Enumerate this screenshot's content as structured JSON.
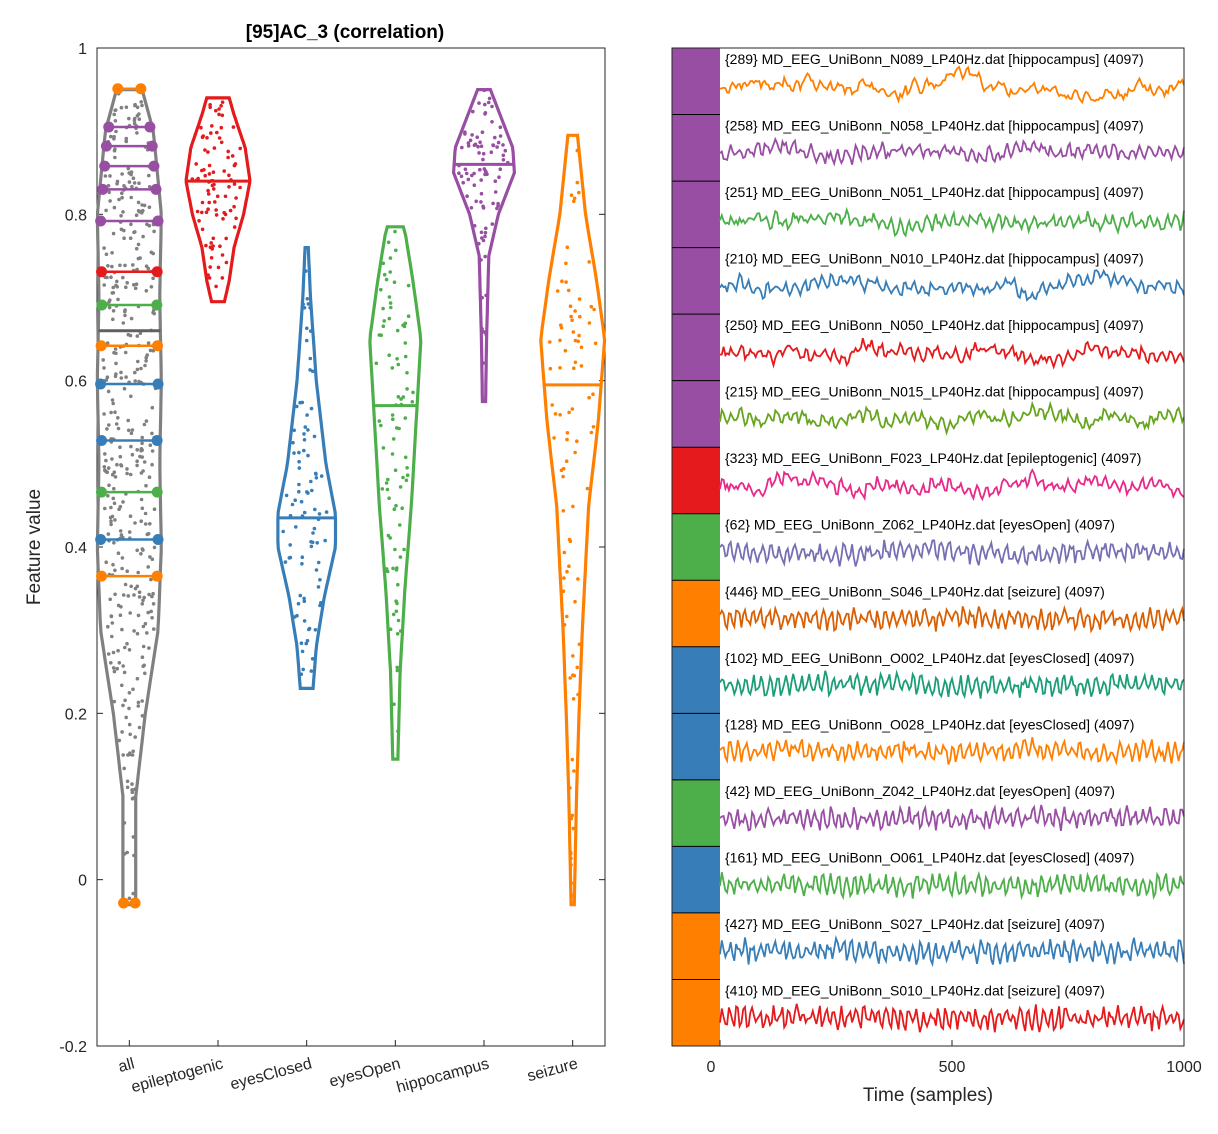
{
  "chart_data": [
    {
      "type": "violin",
      "title": "[95]AC_3 (correlation)",
      "xlabel": "",
      "ylabel": "Feature value",
      "ylim": [
        -0.2,
        1
      ],
      "yticks": [
        -0.2,
        0,
        0.2,
        0.4,
        0.6,
        0.8,
        1
      ],
      "ytick_labels": [
        "-0.2",
        "0",
        "0.2",
        "0.4",
        "0.6",
        "0.8",
        "1"
      ],
      "categories": [
        "all",
        "epileptogenic",
        "eyesClosed",
        "eyesOpen",
        "hippocampus",
        "seizure"
      ],
      "colors": {
        "all": "#808080",
        "epileptogenic": "#e41a1c",
        "eyesClosed": "#377eb8",
        "eyesOpen": "#4daf4a",
        "hippocampus": "#984ea3",
        "seizure": "#ff7f00"
      },
      "series": [
        {
          "name": "all",
          "min": -0.03,
          "max": 0.95,
          "median": 0.66,
          "density": [
            [
              -0.03,
              0.2
            ],
            [
              0.1,
              0.2
            ],
            [
              0.2,
              0.5
            ],
            [
              0.3,
              0.9
            ],
            [
              0.4,
              1.0
            ],
            [
              0.5,
              0.95
            ],
            [
              0.6,
              1.0
            ],
            [
              0.7,
              0.95
            ],
            [
              0.8,
              1.0
            ],
            [
              0.9,
              0.75
            ],
            [
              0.95,
              0.4
            ]
          ]
        },
        {
          "name": "epileptogenic",
          "min": 0.695,
          "max": 0.94,
          "median": 0.84,
          "density": [
            [
              0.695,
              0.2
            ],
            [
              0.72,
              0.35
            ],
            [
              0.76,
              0.5
            ],
            [
              0.8,
              0.8
            ],
            [
              0.84,
              1.0
            ],
            [
              0.88,
              0.85
            ],
            [
              0.92,
              0.5
            ],
            [
              0.94,
              0.35
            ]
          ]
        },
        {
          "name": "eyesClosed",
          "min": 0.23,
          "max": 0.76,
          "median": 0.435,
          "density": [
            [
              0.23,
              0.2
            ],
            [
              0.28,
              0.3
            ],
            [
              0.34,
              0.55
            ],
            [
              0.4,
              0.9
            ],
            [
              0.44,
              0.9
            ],
            [
              0.5,
              0.6
            ],
            [
              0.6,
              0.3
            ],
            [
              0.7,
              0.12
            ],
            [
              0.76,
              0.05
            ]
          ]
        },
        {
          "name": "eyesOpen",
          "min": 0.145,
          "max": 0.785,
          "median": 0.57,
          "density": [
            [
              0.145,
              0.08
            ],
            [
              0.25,
              0.15
            ],
            [
              0.35,
              0.3
            ],
            [
              0.45,
              0.5
            ],
            [
              0.55,
              0.65
            ],
            [
              0.65,
              0.8
            ],
            [
              0.72,
              0.55
            ],
            [
              0.78,
              0.3
            ],
            [
              0.785,
              0.25
            ]
          ]
        },
        {
          "name": "hippocampus",
          "min": 0.575,
          "max": 0.95,
          "median": 0.86,
          "density": [
            [
              0.575,
              0.05
            ],
            [
              0.65,
              0.08
            ],
            [
              0.75,
              0.15
            ],
            [
              0.8,
              0.45
            ],
            [
              0.85,
              0.95
            ],
            [
              0.88,
              0.9
            ],
            [
              0.92,
              0.5
            ],
            [
              0.95,
              0.2
            ]
          ]
        },
        {
          "name": "seizure",
          "min": -0.03,
          "max": 0.895,
          "median": 0.595,
          "density": [
            [
              -0.03,
              0.05
            ],
            [
              0.1,
              0.12
            ],
            [
              0.2,
              0.2
            ],
            [
              0.3,
              0.3
            ],
            [
              0.45,
              0.5
            ],
            [
              0.55,
              0.8
            ],
            [
              0.65,
              1.0
            ],
            [
              0.72,
              0.75
            ],
            [
              0.8,
              0.4
            ],
            [
              0.895,
              0.15
            ]
          ]
        }
      ],
      "highlighted_points": [
        {
          "value": 0.951,
          "color": "#ff7f00"
        },
        {
          "value": 0.905,
          "color": "#984ea3"
        },
        {
          "value": 0.882,
          "color": "#984ea3"
        },
        {
          "value": 0.858,
          "color": "#984ea3"
        },
        {
          "value": 0.83,
          "color": "#984ea3"
        },
        {
          "value": 0.792,
          "color": "#984ea3"
        },
        {
          "value": 0.731,
          "color": "#e41a1c"
        },
        {
          "value": 0.691,
          "color": "#4daf4a"
        },
        {
          "value": 0.642,
          "color": "#ff7f00"
        },
        {
          "value": 0.596,
          "color": "#377eb8"
        },
        {
          "value": 0.528,
          "color": "#377eb8"
        },
        {
          "value": 0.466,
          "color": "#4daf4a"
        },
        {
          "value": 0.409,
          "color": "#377eb8"
        },
        {
          "value": 0.365,
          "color": "#ff7f00"
        },
        {
          "value": -0.028,
          "color": "#ff7f00"
        }
      ]
    },
    {
      "type": "line",
      "xlabel": "Time (samples)",
      "xlim": [
        0,
        1000
      ],
      "xticks": [
        0,
        500,
        1000
      ],
      "xtick_labels": [
        "0",
        "500",
        "1000"
      ],
      "series": [
        {
          "name": "{289} MD_EEG_UniBonn_N089_LP40Hz.dat [hippocampus] (4097)",
          "color": "#ff7f00",
          "band": "#984ea3",
          "roughness": 0.25
        },
        {
          "name": "{258} MD_EEG_UniBonn_N058_LP40Hz.dat [hippocampus] (4097)",
          "color": "#984ea3",
          "band": "#984ea3",
          "roughness": 0.6
        },
        {
          "name": "{251} MD_EEG_UniBonn_N051_LP40Hz.dat [hippocampus] (4097)",
          "color": "#4daf4a",
          "band": "#984ea3",
          "roughness": 0.6
        },
        {
          "name": "{210} MD_EEG_UniBonn_N010_LP40Hz.dat [hippocampus] (4097)",
          "color": "#377eb8",
          "band": "#984ea3",
          "roughness": 0.55
        },
        {
          "name": "{250} MD_EEG_UniBonn_N050_LP40Hz.dat [hippocampus] (4097)",
          "color": "#e41a1c",
          "band": "#984ea3",
          "roughness": 0.5
        },
        {
          "name": "{215} MD_EEG_UniBonn_N015_LP40Hz.dat [hippocampus] (4097)",
          "color": "#66a61e",
          "band": "#984ea3",
          "roughness": 0.55
        },
        {
          "name": "{323} MD_EEG_UniBonn_F023_LP40Hz.dat [epileptogenic] (4097)",
          "color": "#e7298a",
          "band": "#e41a1c",
          "roughness": 0.55
        },
        {
          "name": "{62} MD_EEG_UniBonn_Z062_LP40Hz.dat [eyesOpen] (4097)",
          "color": "#7570b3",
          "band": "#4daf4a",
          "roughness": 0.8
        },
        {
          "name": "{446} MD_EEG_UniBonn_S046_LP40Hz.dat [seizure] (4097)",
          "color": "#d95f02",
          "band": "#ff7f00",
          "roughness": 0.9
        },
        {
          "name": "{102} MD_EEG_UniBonn_O002_LP40Hz.dat [eyesClosed] (4097)",
          "color": "#1b9e77",
          "band": "#377eb8",
          "roughness": 0.85
        },
        {
          "name": "{128} MD_EEG_UniBonn_O028_LP40Hz.dat [eyesClosed] (4097)",
          "color": "#ff7f00",
          "band": "#377eb8",
          "roughness": 0.85
        },
        {
          "name": "{42} MD_EEG_UniBonn_Z042_LP40Hz.dat [eyesOpen] (4097)",
          "color": "#984ea3",
          "band": "#4daf4a",
          "roughness": 0.9
        },
        {
          "name": "{161} MD_EEG_UniBonn_O061_LP40Hz.dat [eyesClosed] (4097)",
          "color": "#4daf4a",
          "band": "#377eb8",
          "roughness": 0.9
        },
        {
          "name": "{427} MD_EEG_UniBonn_S027_LP40Hz.dat [seizure] (4097)",
          "color": "#377eb8",
          "band": "#ff7f00",
          "roughness": 0.95
        },
        {
          "name": "{410} MD_EEG_UniBonn_S010_LP40Hz.dat [seizure] (4097)",
          "color": "#e41a1c",
          "band": "#ff7f00",
          "roughness": 1.0
        }
      ]
    }
  ]
}
